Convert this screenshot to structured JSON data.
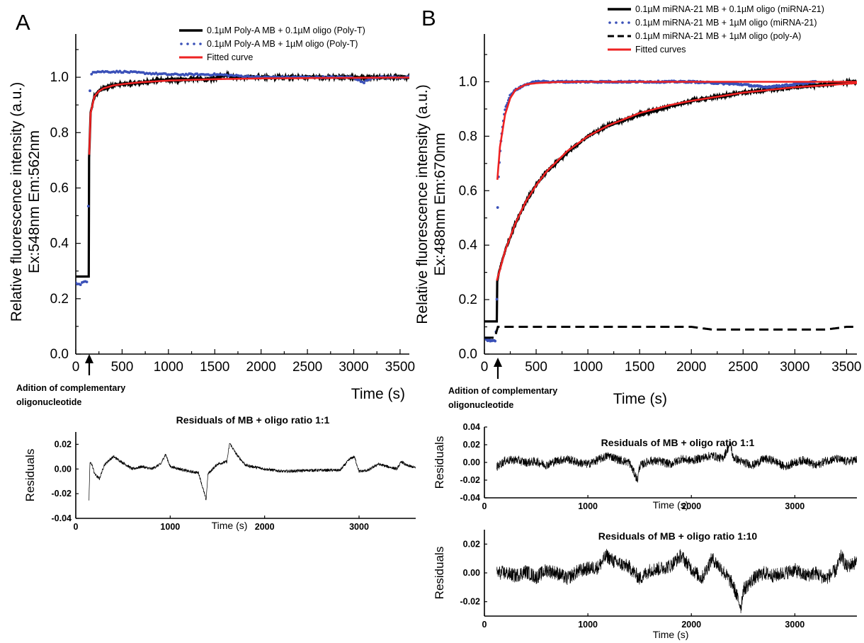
{
  "panel_letters": [
    "A",
    "B"
  ],
  "annotations": {
    "A": [
      "Adition of complementary",
      "oligonucleotide"
    ],
    "B": [
      "Adition of complementary",
      "oligonucleotide"
    ]
  },
  "colors": {
    "black_series": "#000000",
    "blue_series": "#3a50b8",
    "red_fit": "#ee2222"
  },
  "chart_data": [
    {
      "id": "A-main",
      "type": "line",
      "xlabel": "Time (s)",
      "ylabel_lines": [
        "Relative fluorescence intensity (a.u.)",
        "Ex:548nm  Em:562nm"
      ],
      "xlim": [
        0,
        3600
      ],
      "ylim": [
        0.0,
        1.1
      ],
      "xticks": [
        0,
        500,
        1000,
        1500,
        2000,
        2500,
        3000,
        3500
      ],
      "yticks": [
        "0.0",
        "0.2",
        "0.4",
        "0.6",
        "0.8",
        "1.0"
      ],
      "series": [
        {
          "name": "0.1µM Poly-A MB + 0.1µM oligo (Poly-T)",
          "style": "solid-black",
          "x": [
            0,
            100,
            140,
            141,
            160,
            200,
            250,
            300,
            400,
            500,
            700,
            900,
            1100,
            1300,
            1400,
            1500,
            1620,
            1700,
            2000,
            2500,
            3000,
            3500,
            3600
          ],
          "y": [
            0.28,
            0.28,
            0.28,
            0.68,
            0.87,
            0.93,
            0.95,
            0.96,
            0.97,
            0.975,
            0.98,
            0.99,
            0.99,
            0.995,
            0.99,
            0.995,
            1.01,
            1.0,
            1.0,
            1.0,
            1.0,
            1.0,
            1.0
          ]
        },
        {
          "name": "0.1µM Poly-A MB + 1µM oligo (Poly-T)",
          "style": "dotted-blue",
          "x": [
            0,
            40,
            80,
            120,
            135,
            145,
            155,
            165,
            180,
            200,
            300,
            500,
            1000,
            1500,
            2000,
            2500,
            3000,
            3100,
            3200,
            3500,
            3600
          ],
          "y": [
            0.26,
            0.25,
            0.26,
            0.26,
            0.5,
            0.85,
            0.98,
            1.01,
            1.02,
            1.02,
            1.02,
            1.02,
            1.01,
            1.01,
            1.0,
            1.0,
            1.0,
            0.98,
            1.0,
            1.0,
            1.0
          ]
        },
        {
          "name": "Fitted curve",
          "style": "solid-red",
          "x": [
            145,
            160,
            200,
            250,
            300,
            400,
            500,
            700,
            1000,
            1500,
            2000,
            2500,
            3000,
            3600
          ],
          "y": [
            0.72,
            0.87,
            0.93,
            0.95,
            0.96,
            0.97,
            0.975,
            0.982,
            0.988,
            0.993,
            0.996,
            0.997,
            0.998,
            0.999
          ]
        }
      ]
    },
    {
      "id": "A-residuals",
      "type": "line",
      "title": "Residuals of MB + oligo ratio 1:1",
      "xlabel": "Time (s)",
      "ylabel": "Residuals",
      "xlim": [
        0,
        3600
      ],
      "ylim": [
        -0.04,
        0.03
      ],
      "xticks": [
        0,
        1000,
        2000,
        3000
      ],
      "yticks": [
        "-0.04",
        "-0.02",
        "0.00",
        "0.02"
      ],
      "x": [
        140,
        150,
        170,
        200,
        250,
        300,
        350,
        400,
        500,
        600,
        700,
        800,
        900,
        950,
        1000,
        1100,
        1200,
        1300,
        1380,
        1400,
        1500,
        1600,
        1630,
        1700,
        1800,
        2000,
        2200,
        2500,
        2800,
        2900,
        2950,
        3000,
        3100,
        3200,
        3300,
        3400,
        3450,
        3500,
        3600
      ],
      "y": [
        -0.025,
        0.005,
        0.004,
        -0.004,
        -0.008,
        0.003,
        0.007,
        0.01,
        0.005,
        0.0,
        0.002,
        0.0,
        0.004,
        0.012,
        0.002,
        0.0,
        -0.002,
        -0.003,
        -0.025,
        -0.004,
        0.004,
        0.006,
        0.021,
        0.012,
        0.003,
        0.0,
        -0.002,
        -0.001,
        -0.001,
        0.008,
        0.01,
        -0.002,
        -0.001,
        0.004,
        0.002,
        0.0,
        0.006,
        0.003,
        0.001
      ]
    },
    {
      "id": "B-main",
      "type": "line",
      "xlabel": "Time (s)",
      "ylabel_lines": [
        "Relative fluorescence intensity (a.u.)",
        "Ex:488nm  Em:670nm"
      ],
      "xlim": [
        0,
        3600
      ],
      "ylim": [
        0.0,
        1.1
      ],
      "xticks": [
        0,
        500,
        1000,
        1500,
        2000,
        2500,
        3000,
        3500
      ],
      "yticks": [
        "0.0",
        "0.2",
        "0.4",
        "0.6",
        "0.8",
        "1.0"
      ],
      "series": [
        {
          "name": "0.1µM miRNA-21 MB + 0.1µM oligo (miRNA-21)",
          "style": "solid-black",
          "x": [
            0,
            60,
            120,
            121,
            140,
            200,
            300,
            400,
            500,
            600,
            800,
            1000,
            1200,
            1500,
            1800,
            2000,
            2500,
            3000,
            3300,
            3600
          ],
          "y": [
            0.12,
            0.12,
            0.12,
            0.26,
            0.3,
            0.38,
            0.48,
            0.56,
            0.62,
            0.67,
            0.74,
            0.8,
            0.84,
            0.88,
            0.91,
            0.93,
            0.96,
            0.98,
            0.99,
            1.0
          ]
        },
        {
          "name": "0.1µM miRNA-21 MB + 1µM oligo (miRNA-21)",
          "style": "dotted-blue",
          "x": [
            0,
            30,
            60,
            90,
            110,
            120,
            125,
            130,
            140,
            150,
            170,
            200,
            250,
            300,
            400,
            500,
            800,
            1000,
            1500,
            2000,
            2500,
            2700,
            3000,
            3200
          ],
          "y": [
            0.06,
            0.05,
            0.05,
            0.05,
            0.05,
            0.2,
            0.45,
            0.6,
            0.68,
            0.74,
            0.82,
            0.9,
            0.95,
            0.97,
            0.99,
            1.0,
            1.0,
            1.0,
            1.0,
            1.0,
            0.99,
            0.98,
            0.99,
            1.0
          ]
        },
        {
          "name": "0.1µM miRNA-21 MB + 1µM oligo (poly-A)",
          "style": "dashed-black",
          "x": [
            0,
            100,
            130,
            150,
            200,
            500,
            1000,
            1500,
            2000,
            2200,
            2500,
            3000,
            3300,
            3500,
            3600
          ],
          "y": [
            0.06,
            0.06,
            0.1,
            0.1,
            0.1,
            0.1,
            0.1,
            0.1,
            0.1,
            0.09,
            0.09,
            0.09,
            0.09,
            0.1,
            0.1
          ]
        },
        {
          "name": "Fitted curves",
          "style": "solid-red",
          "x": [
            125,
            150,
            200,
            250,
            300,
            400,
            500,
            700,
            1000,
            1500,
            2000,
            3000,
            3600
          ],
          "y": [
            0.64,
            0.76,
            0.88,
            0.94,
            0.97,
            0.99,
            0.995,
            0.999,
            1.0,
            1.0,
            1.0,
            1.0,
            1.0
          ]
        },
        {
          "name": "Fitted curves",
          "style": "solid-red",
          "x": [
            120,
            150,
            200,
            300,
            400,
            500,
            600,
            800,
            1000,
            1200,
            1500,
            1800,
            2000,
            2500,
            3000,
            3600
          ],
          "y": [
            0.27,
            0.31,
            0.38,
            0.48,
            0.56,
            0.62,
            0.67,
            0.745,
            0.8,
            0.84,
            0.885,
            0.915,
            0.93,
            0.96,
            0.98,
            0.995
          ]
        }
      ]
    },
    {
      "id": "B-residuals-1",
      "type": "line",
      "title": "Residuals of MB + oligo ratio 1:1",
      "xlabel": "Time (s)",
      "ylabel": "Residuals",
      "xlim": [
        0,
        3600
      ],
      "ylim": [
        -0.04,
        0.04
      ],
      "xticks": [
        0,
        1000,
        2000,
        3000
      ],
      "yticks": [
        "-0.04",
        "-0.02",
        "0.00",
        "0.02",
        "0.04"
      ],
      "x": [
        120,
        200,
        300,
        400,
        500,
        600,
        700,
        800,
        900,
        1000,
        1100,
        1200,
        1300,
        1400,
        1480,
        1500,
        1600,
        1700,
        1800,
        1900,
        2000,
        2100,
        2200,
        2300,
        2380,
        2400,
        2500,
        2600,
        2700,
        2800,
        2900,
        3000,
        3100,
        3200,
        3300,
        3400,
        3500,
        3600
      ],
      "y": [
        -0.005,
        0.002,
        0.003,
        0.0,
        0.001,
        -0.003,
        0.002,
        0.004,
        0.0,
        -0.002,
        0.003,
        0.008,
        0.003,
        0.0,
        -0.02,
        -0.004,
        0.002,
        0.001,
        -0.002,
        0.004,
        0.002,
        0.005,
        0.008,
        0.004,
        0.022,
        0.006,
        0.0,
        -0.003,
        0.004,
        0.002,
        -0.005,
        0.0,
        0.003,
        -0.004,
        0.002,
        0.004,
        0.001,
        0.003
      ]
    },
    {
      "id": "B-residuals-10",
      "type": "line",
      "title": "Residuals of MB + oligo ratio 1:10",
      "xlabel": "Time (s)",
      "ylabel": "Residuals",
      "xlim": [
        0,
        3600
      ],
      "ylim": [
        -0.03,
        0.03
      ],
      "xticks": [
        0,
        1000,
        2000,
        3000
      ],
      "yticks": [
        "-0.02",
        "0.00",
        "0.02"
      ],
      "x": [
        120,
        200,
        300,
        400,
        500,
        600,
        700,
        800,
        900,
        1000,
        1100,
        1180,
        1250,
        1400,
        1500,
        1600,
        1700,
        1800,
        1900,
        2000,
        2100,
        2200,
        2300,
        2400,
        2480,
        2500,
        2600,
        2700,
        2800,
        2900,
        3000,
        3100,
        3200,
        3300,
        3400,
        3450,
        3500,
        3600
      ],
      "y": [
        0.0,
        0.0,
        -0.002,
        0.001,
        -0.003,
        0.002,
        0.0,
        -0.004,
        0.001,
        0.003,
        0.004,
        0.012,
        0.008,
        0.004,
        -0.004,
        0.002,
        0.003,
        0.005,
        0.012,
        0.003,
        -0.004,
        0.01,
        0.002,
        -0.008,
        -0.024,
        -0.012,
        -0.004,
        0.0,
        -0.002,
        0.0,
        0.002,
        -0.002,
        0.0,
        -0.004,
        0.002,
        0.012,
        0.004,
        0.008
      ]
    }
  ]
}
